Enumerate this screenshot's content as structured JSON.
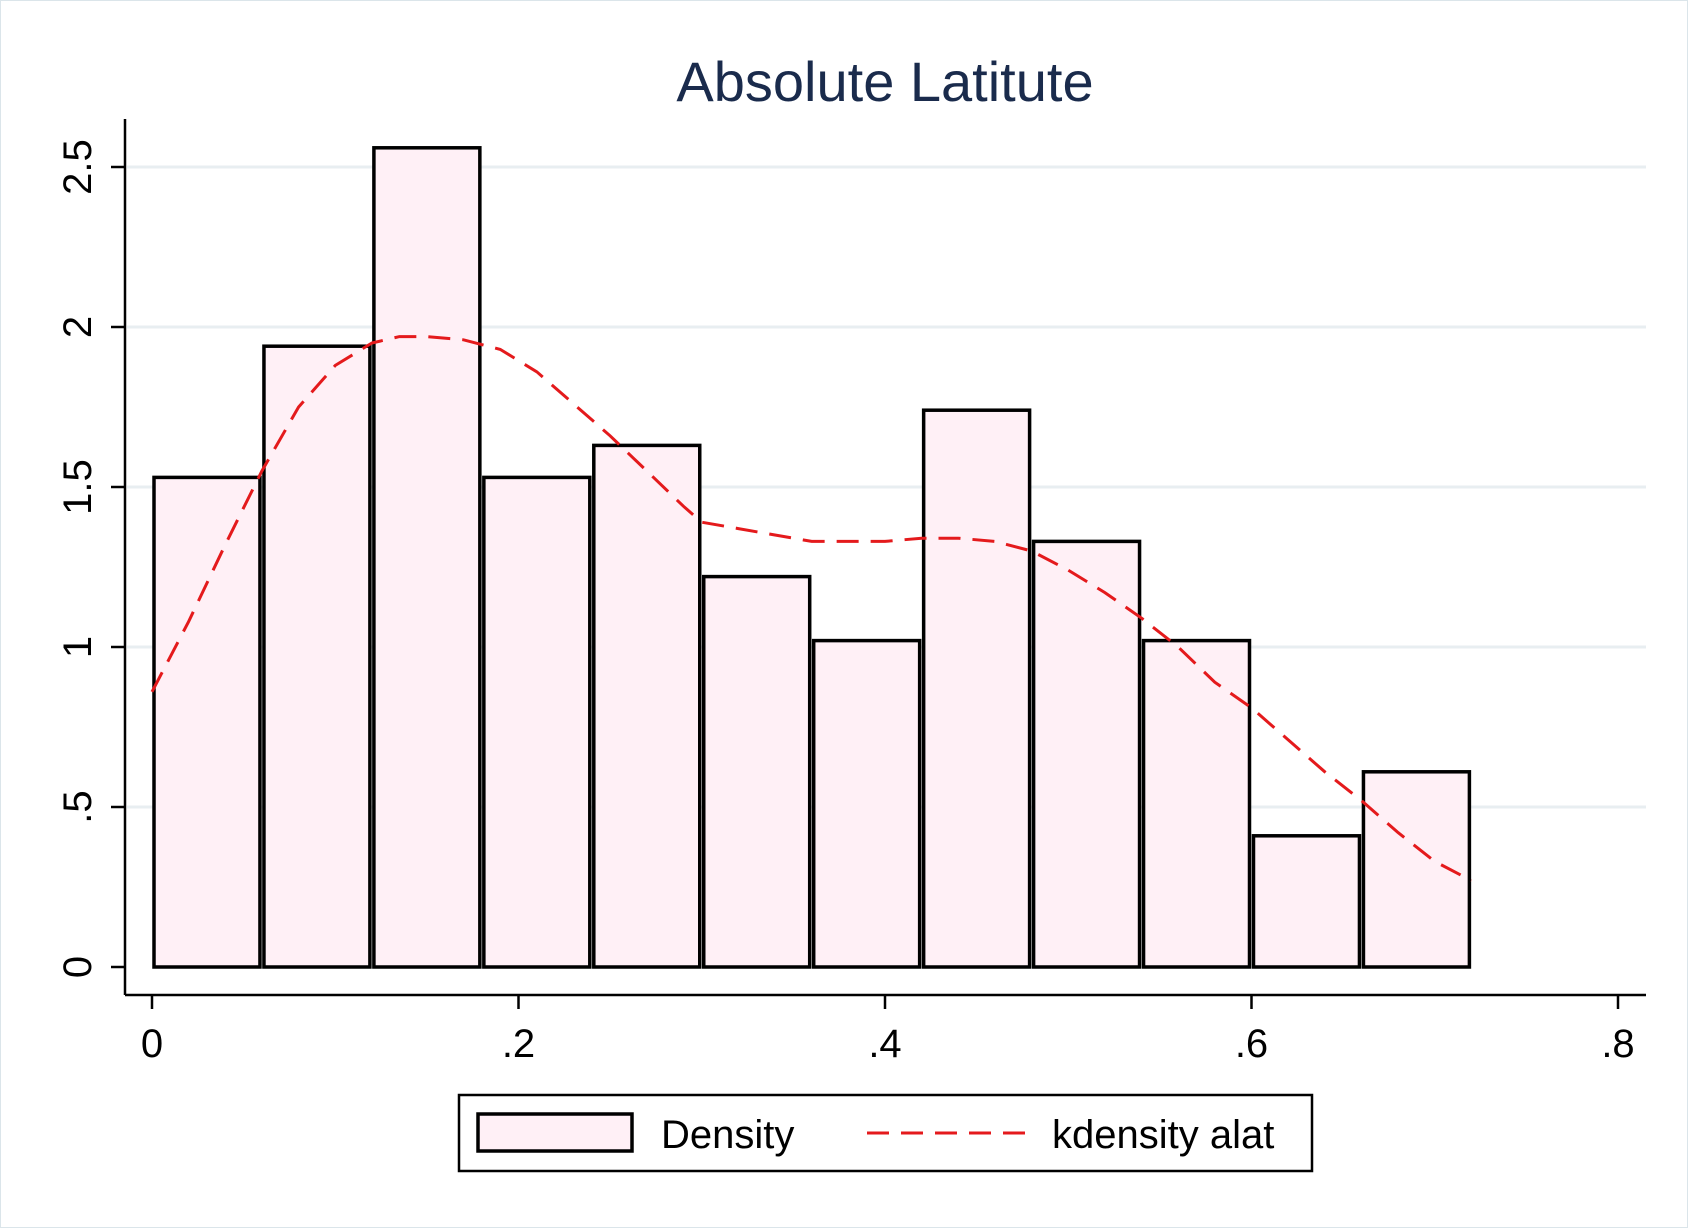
{
  "chart_data": {
    "type": "bar",
    "title": "Absolute Latitute",
    "xlabel": "",
    "ylabel": "",
    "xlim": [
      0,
      0.8
    ],
    "ylim": [
      0,
      2.65
    ],
    "bin_width": 0.06,
    "bins_start": [
      0,
      0.06,
      0.12,
      0.18,
      0.24,
      0.3,
      0.36,
      0.42,
      0.48,
      0.54,
      0.6,
      0.66
    ],
    "values": [
      1.53,
      1.94,
      2.56,
      1.53,
      1.63,
      1.22,
      1.02,
      1.74,
      1.33,
      1.02,
      0.41,
      0.61
    ],
    "x_ticks": [
      0,
      0.2,
      0.4,
      0.6,
      0.8
    ],
    "x_tick_labels": [
      "0",
      ".2",
      ".4",
      ".6",
      ".8"
    ],
    "y_ticks": [
      0,
      0.5,
      1,
      1.5,
      2,
      2.5
    ],
    "y_tick_labels": [
      "0",
      ".5",
      "1",
      "1.5",
      "2",
      "2.5"
    ],
    "grid": "horizontal",
    "legend_position": "bottom",
    "series": [
      {
        "name": "Density",
        "kind": "histogram",
        "fill": "#fff0f6",
        "stroke": "#000000"
      },
      {
        "name": "kdensity alat",
        "kind": "line",
        "style": "dashed",
        "color": "#e41a1c",
        "x": [
          0.0,
          0.02,
          0.04,
          0.06,
          0.08,
          0.1,
          0.12,
          0.135,
          0.15,
          0.17,
          0.19,
          0.21,
          0.23,
          0.25,
          0.27,
          0.29,
          0.3,
          0.32,
          0.34,
          0.36,
          0.38,
          0.4,
          0.42,
          0.44,
          0.46,
          0.48,
          0.5,
          0.52,
          0.54,
          0.56,
          0.58,
          0.6,
          0.62,
          0.64,
          0.66,
          0.68,
          0.7,
          0.72
        ],
        "y": [
          0.86,
          1.08,
          1.32,
          1.55,
          1.75,
          1.88,
          1.95,
          1.97,
          1.97,
          1.96,
          1.93,
          1.86,
          1.76,
          1.66,
          1.55,
          1.44,
          1.39,
          1.37,
          1.35,
          1.33,
          1.33,
          1.33,
          1.34,
          1.34,
          1.33,
          1.3,
          1.24,
          1.17,
          1.09,
          1.0,
          0.89,
          0.81,
          0.71,
          0.61,
          0.52,
          0.42,
          0.33,
          0.27
        ]
      }
    ]
  }
}
